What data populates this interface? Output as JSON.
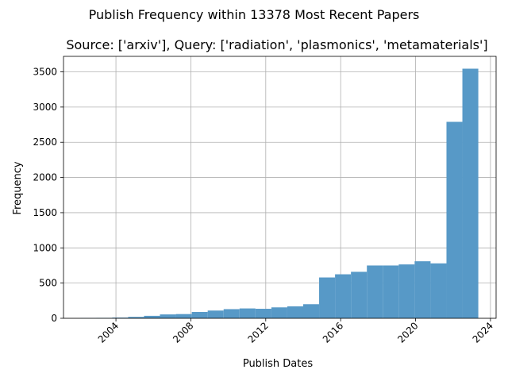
{
  "chart_data": {
    "type": "bar",
    "suptitle": "Publish Frequency within 13378 Most Recent Papers",
    "title": "Source: ['arxiv'], Query: ['radiation', 'plasmonics', 'metamaterials']",
    "xlabel": "Publish Dates",
    "ylabel": "Frequency",
    "grid": true,
    "bar_color": "#5799c7",
    "xlim": [
      2001.2,
      2024.3
    ],
    "ylim": [
      0,
      3720
    ],
    "xticks": [
      {
        "value": 2004,
        "label": "2004"
      },
      {
        "value": 2008,
        "label": "2008"
      },
      {
        "value": 2012,
        "label": "2012"
      },
      {
        "value": 2016,
        "label": "2016"
      },
      {
        "value": 2020,
        "label": "2020"
      },
      {
        "value": 2024,
        "label": "2024"
      }
    ],
    "yticks": [
      {
        "value": 0,
        "label": "0"
      },
      {
        "value": 500,
        "label": "500"
      },
      {
        "value": 1000,
        "label": "1000"
      },
      {
        "value": 1500,
        "label": "1500"
      },
      {
        "value": 2000,
        "label": "2000"
      },
      {
        "value": 2500,
        "label": "2500"
      },
      {
        "value": 3000,
        "label": "3000"
      },
      {
        "value": 3500,
        "label": "3500"
      }
    ],
    "bins": [
      {
        "start": 2002.1,
        "end": 2002.95,
        "value": 4
      },
      {
        "start": 2002.95,
        "end": 2003.8,
        "value": 6
      },
      {
        "start": 2003.8,
        "end": 2004.65,
        "value": 10
      },
      {
        "start": 2004.65,
        "end": 2005.5,
        "value": 20
      },
      {
        "start": 2005.5,
        "end": 2006.35,
        "value": 35
      },
      {
        "start": 2006.35,
        "end": 2007.2,
        "value": 55
      },
      {
        "start": 2007.2,
        "end": 2008.05,
        "value": 60
      },
      {
        "start": 2008.05,
        "end": 2008.9,
        "value": 90
      },
      {
        "start": 2008.9,
        "end": 2009.75,
        "value": 110
      },
      {
        "start": 2009.75,
        "end": 2010.6,
        "value": 130
      },
      {
        "start": 2010.6,
        "end": 2011.45,
        "value": 140
      },
      {
        "start": 2011.45,
        "end": 2012.3,
        "value": 135
      },
      {
        "start": 2012.3,
        "end": 2013.15,
        "value": 155
      },
      {
        "start": 2013.15,
        "end": 2014.0,
        "value": 170
      },
      {
        "start": 2014.0,
        "end": 2014.85,
        "value": 200
      },
      {
        "start": 2014.85,
        "end": 2015.7,
        "value": 580
      },
      {
        "start": 2015.7,
        "end": 2016.55,
        "value": 625
      },
      {
        "start": 2016.55,
        "end": 2017.4,
        "value": 660
      },
      {
        "start": 2017.4,
        "end": 2018.25,
        "value": 750
      },
      {
        "start": 2018.25,
        "end": 2019.1,
        "value": 750
      },
      {
        "start": 2019.1,
        "end": 2019.95,
        "value": 765
      },
      {
        "start": 2019.95,
        "end": 2020.8,
        "value": 810
      },
      {
        "start": 2020.8,
        "end": 2021.65,
        "value": 780
      },
      {
        "start": 2021.65,
        "end": 2022.5,
        "value": 2790
      },
      {
        "start": 2022.5,
        "end": 2023.35,
        "value": 3545
      }
    ]
  }
}
